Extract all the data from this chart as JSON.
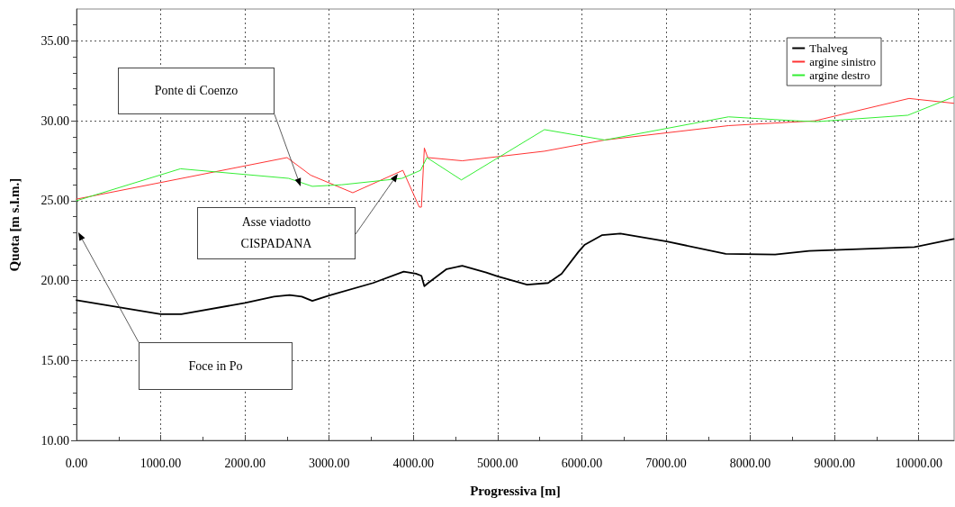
{
  "chart_data": {
    "type": "line",
    "xlabel": "Progressiva [m]",
    "ylabel": "Quota [m s.l.m.]",
    "xlim": [
      0,
      10420
    ],
    "ylim": [
      10,
      37
    ],
    "xticks": [
      {
        "value": 0,
        "label": "0.00"
      },
      {
        "value": 1000,
        "label": "1000.00"
      },
      {
        "value": 2000,
        "label": "2000.00"
      },
      {
        "value": 3000,
        "label": "3000.00"
      },
      {
        "value": 4000,
        "label": "4000.00"
      },
      {
        "value": 5000,
        "label": "5000.00"
      },
      {
        "value": 6000,
        "label": "6000.00"
      },
      {
        "value": 7000,
        "label": "7000.00"
      },
      {
        "value": 8000,
        "label": "8000.00"
      },
      {
        "value": 9000,
        "label": "9000.00"
      },
      {
        "value": 10000,
        "label": "10000.00"
      }
    ],
    "yticks": [
      {
        "value": 10,
        "label": "10.00"
      },
      {
        "value": 15,
        "label": "15.00"
      },
      {
        "value": 20,
        "label": "20.00"
      },
      {
        "value": 25,
        "label": "25.00"
      },
      {
        "value": 30,
        "label": "30.00"
      },
      {
        "value": 35,
        "label": "35.00"
      }
    ],
    "grid": true,
    "legend": "top right",
    "marker": "none",
    "line_style": "solid",
    "series": [
      {
        "name": "Thalveg",
        "color": "#000000",
        "x": [
          0,
          1000,
          1245,
          2000,
          2345,
          2530,
          2675,
          2800,
          3000,
          3520,
          3885,
          4030,
          4095,
          4130,
          4175,
          4395,
          4580,
          4865,
          5000,
          5350,
          5600,
          5760,
          5960,
          6035,
          6237,
          6458,
          7009,
          7708,
          8295,
          8699,
          9433,
          9948,
          10415
        ],
        "values": [
          18.77,
          17.9,
          17.9,
          18.6,
          19.0,
          19.1,
          19.0,
          18.73,
          19.07,
          19.85,
          20.56,
          20.43,
          20.3,
          19.65,
          19.85,
          20.72,
          20.93,
          20.5,
          20.27,
          19.75,
          19.85,
          20.43,
          21.8,
          22.25,
          22.84,
          22.94,
          22.45,
          21.67,
          21.63,
          21.86,
          22.0,
          22.1,
          22.6
        ]
      },
      {
        "name": "argine sinistro",
        "color": "#ff3333",
        "x": [
          0,
          2500,
          2780,
          3280,
          3875,
          4070,
          4095,
          4130,
          4170,
          4580,
          5556,
          6272,
          7741,
          8767,
          9885,
          10415
        ],
        "values": [
          25.1,
          27.7,
          26.6,
          25.5,
          26.9,
          24.6,
          24.6,
          28.3,
          27.7,
          27.5,
          28.1,
          28.8,
          29.7,
          30.0,
          31.4,
          31.1
        ]
      },
      {
        "name": "argine destro",
        "color": "#33ee33",
        "x": [
          0,
          1234,
          2520,
          2800,
          3150,
          3865,
          4085,
          4160,
          4570,
          5556,
          6272,
          7741,
          8548,
          8789,
          9871,
          10415
        ],
        "values": [
          25.0,
          27.0,
          26.4,
          25.9,
          26.0,
          26.4,
          26.9,
          27.7,
          26.3,
          29.45,
          28.8,
          30.25,
          30.0,
          29.95,
          30.35,
          31.5
        ]
      }
    ],
    "annotations": [
      "Ponte di Coenzo",
      "Asse viadotto\nCISPADANA",
      "Foce in Po"
    ]
  }
}
